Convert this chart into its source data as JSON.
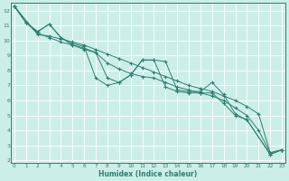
{
  "xlabel": "Humidex (Indice chaleur)",
  "bg_color": "#cceee8",
  "grid_color": "#ffffff",
  "line_color": "#2d7f72",
  "ylim": [
    1.8,
    12.5
  ],
  "xlim": [
    -0.3,
    23.3
  ],
  "yticks": [
    2,
    3,
    4,
    5,
    6,
    7,
    8,
    9,
    10,
    11,
    12
  ],
  "xticks": [
    0,
    1,
    2,
    3,
    4,
    5,
    6,
    7,
    8,
    9,
    10,
    11,
    12,
    13,
    14,
    15,
    16,
    17,
    18,
    19,
    20,
    21,
    22,
    23
  ],
  "line1_x": [
    0,
    1,
    2,
    3,
    4,
    5,
    6,
    7,
    8,
    9,
    10,
    11,
    12,
    13,
    14,
    15,
    16,
    17,
    18,
    19,
    20,
    22,
    23
  ],
  "line1_y": [
    12.3,
    11.2,
    10.6,
    11.1,
    10.2,
    9.8,
    9.6,
    7.5,
    7.0,
    7.2,
    7.7,
    8.7,
    8.7,
    8.6,
    6.7,
    6.6,
    6.6,
    7.2,
    6.4,
    5.1,
    4.7,
    2.4,
    2.7
  ],
  "line2_x": [
    0,
    1,
    2,
    3,
    4,
    5,
    6,
    7,
    8,
    9,
    10,
    11,
    12,
    13,
    14,
    15,
    16,
    17,
    18,
    19,
    20,
    22,
    23
  ],
  "line2_y": [
    12.3,
    11.2,
    10.6,
    11.1,
    10.2,
    9.7,
    9.4,
    9.2,
    7.5,
    7.2,
    7.7,
    8.7,
    8.7,
    6.9,
    6.6,
    6.5,
    6.5,
    6.5,
    5.8,
    5.0,
    4.7,
    2.4,
    2.7
  ],
  "line3_x": [
    0,
    1,
    2,
    3,
    4,
    5,
    6,
    7,
    8,
    9,
    10,
    11,
    12,
    13,
    14,
    15,
    16,
    17,
    18,
    19,
    20,
    21,
    22,
    23
  ],
  "line3_y": [
    12.3,
    11.2,
    10.5,
    10.2,
    9.9,
    9.7,
    9.5,
    9.2,
    8.5,
    8.1,
    7.8,
    7.6,
    7.5,
    7.2,
    6.9,
    6.7,
    6.5,
    6.3,
    6.0,
    5.5,
    5.0,
    4.0,
    2.5,
    2.7
  ],
  "line4_x": [
    0,
    2,
    3,
    4,
    5,
    6,
    7,
    8,
    9,
    10,
    11,
    12,
    13,
    14,
    15,
    16,
    17,
    18,
    19,
    20,
    21,
    22,
    23
  ],
  "line4_y": [
    12.3,
    10.4,
    10.3,
    10.1,
    9.9,
    9.7,
    9.4,
    9.1,
    8.8,
    8.5,
    8.2,
    7.9,
    7.6,
    7.3,
    7.0,
    6.8,
    6.6,
    6.3,
    6.0,
    5.6,
    5.1,
    2.5,
    2.7
  ]
}
